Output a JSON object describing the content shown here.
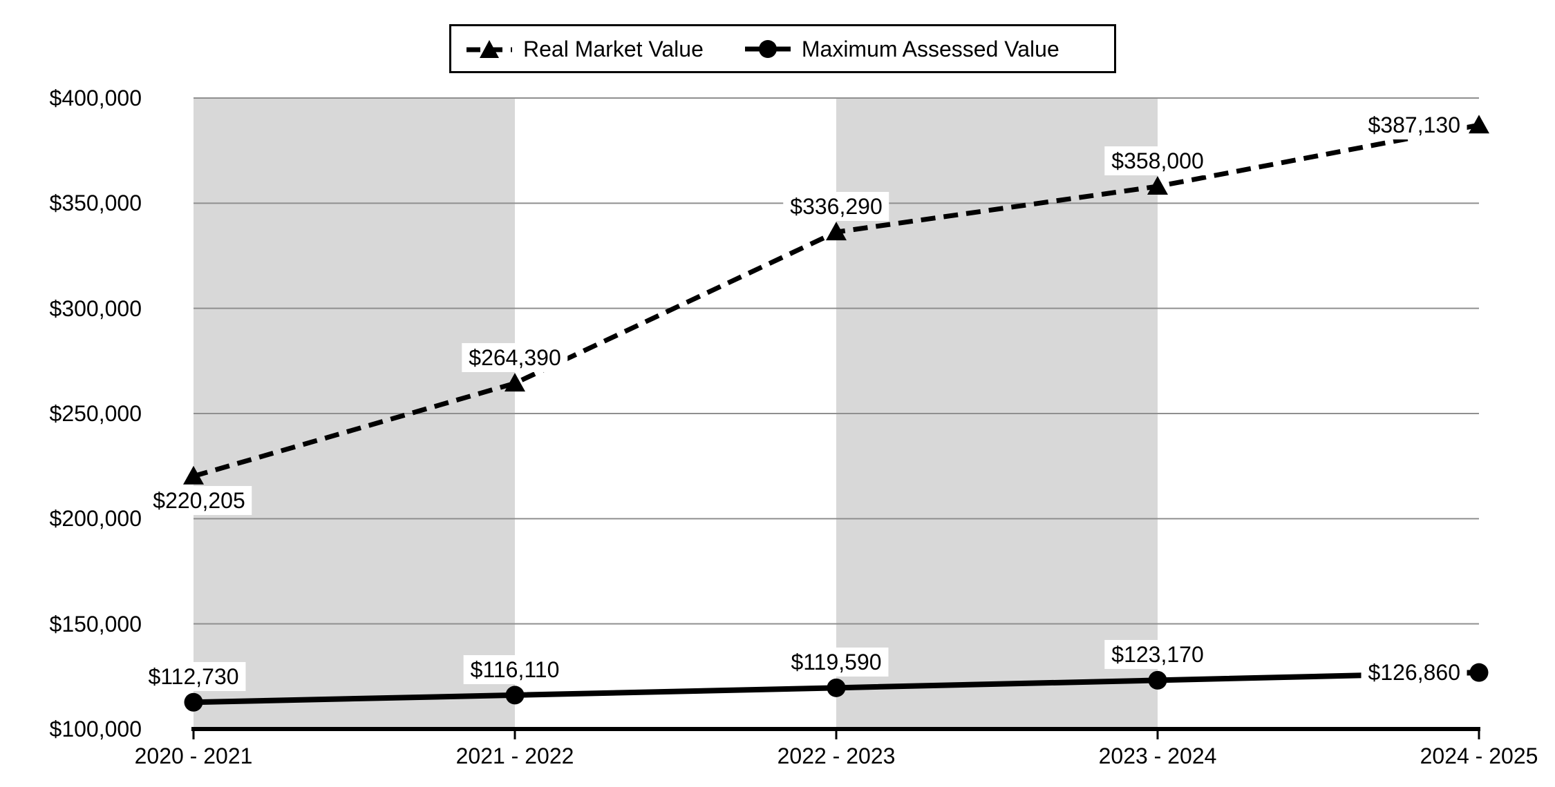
{
  "legend": {
    "items": [
      {
        "label": "Real Market Value",
        "marker": "dashed-line-triangle"
      },
      {
        "label": "Maximum Assessed Value",
        "marker": "solid-line-circle"
      }
    ],
    "position": "top-center"
  },
  "colors": {
    "band": "#d8d8d8",
    "gridline": "#8f8f8f",
    "series": "#000000",
    "background": "#ffffff",
    "text": "#000000"
  },
  "chart_data": {
    "type": "line",
    "title": "",
    "xlabel": "",
    "ylabel": "",
    "categories": [
      "2020 - 2021",
      "2021 - 2022",
      "2022 - 2023",
      "2023 - 2024",
      "2024 - 2025"
    ],
    "series": [
      {
        "name": "Real Market Value",
        "style": "dashed",
        "marker": "triangle",
        "values": [
          220205,
          264390,
          336290,
          358000,
          387130
        ],
        "labels": [
          "$220,205",
          "$264,390",
          "$336,290",
          "$358,000",
          "$387,130"
        ],
        "label_pos": [
          "below-right",
          "above",
          "above",
          "above",
          "left"
        ]
      },
      {
        "name": "Maximum Assessed Value",
        "style": "solid",
        "marker": "circle",
        "values": [
          112730,
          116110,
          119590,
          123170,
          126860
        ],
        "labels": [
          "$112,730",
          "$116,110",
          "$119,590",
          "$123,170",
          "$126,860"
        ],
        "label_pos": [
          "above",
          "above",
          "above",
          "above",
          "left"
        ]
      }
    ],
    "ylim": [
      100000,
      400000
    ],
    "y_tick_step": 50000,
    "y_tick_labels": [
      "$100,000",
      "$150,000",
      "$200,000",
      "$250,000",
      "$300,000",
      "$350,000",
      "$400,000"
    ],
    "grid": true,
    "plot_bands": "alternating gray column shading between category pairs 1-2 and 3-4",
    "legend_position": "top"
  }
}
